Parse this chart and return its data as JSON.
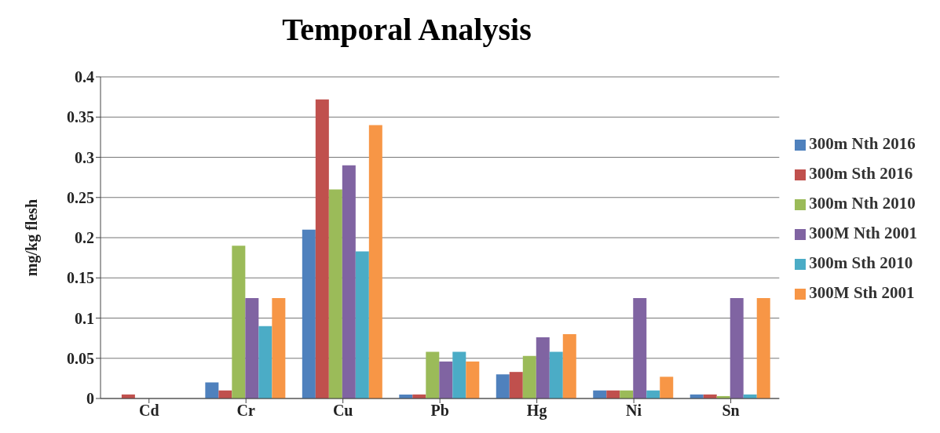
{
  "chart_data": {
    "type": "bar",
    "title": "Temporal Analysis",
    "ylabel": "mg/kg flesh",
    "categories": [
      "Cd",
      "Cr",
      "Cu",
      "Pb",
      "Hg",
      "Ni",
      "Sn"
    ],
    "series": [
      {
        "name": "300m Nth 2016",
        "color": "#4f81bd",
        "values": [
          null,
          0.02,
          0.21,
          0.005,
          0.03,
          0.01,
          0.005
        ]
      },
      {
        "name": "300m Sth 2016",
        "color": "#c0504d",
        "values": [
          0.005,
          0.01,
          0.372,
          0.005,
          0.033,
          0.01,
          0.005
        ]
      },
      {
        "name": "300m Nth 2010",
        "color": "#9bbb59",
        "values": [
          0,
          0.19,
          0.26,
          0.058,
          0.053,
          0.01,
          0.003
        ]
      },
      {
        "name": "300M Nth 2001",
        "color": "#8064a2",
        "values": [
          null,
          0.125,
          0.29,
          0.046,
          0.076,
          0.125,
          0.125
        ]
      },
      {
        "name": "300m Sth 2010",
        "color": "#4bacc6",
        "values": [
          null,
          0.09,
          0.183,
          0.058,
          0.058,
          0.01,
          0.005
        ]
      },
      {
        "name": "300M Sth 2001",
        "color": "#f79646",
        "values": [
          null,
          0.125,
          0.34,
          0.046,
          0.08,
          0.027,
          0.125
        ]
      }
    ],
    "ylim": [
      0,
      0.4
    ],
    "yticks": [
      0,
      0.05,
      0.1,
      0.15,
      0.2,
      0.25,
      0.3,
      0.35,
      0.4
    ],
    "grid": "y",
    "legend": "right"
  }
}
